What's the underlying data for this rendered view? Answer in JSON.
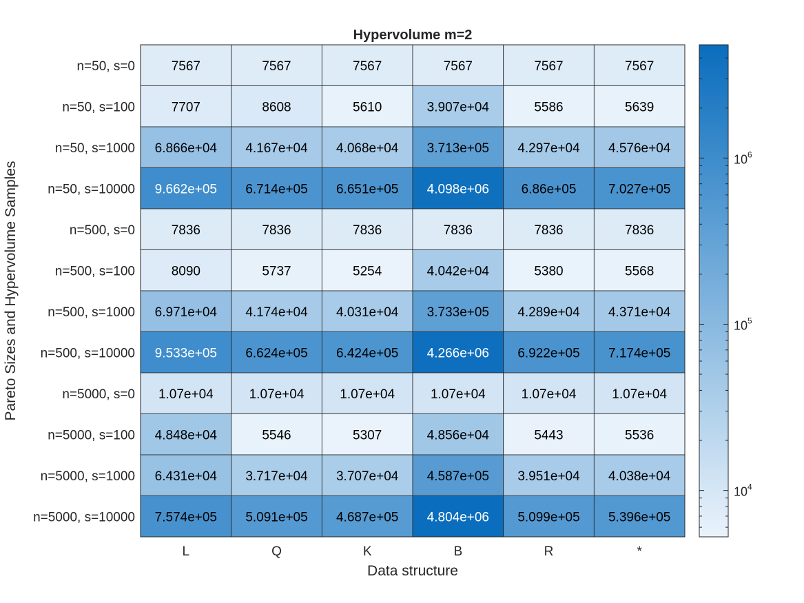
{
  "chart_data": {
    "type": "heatmap",
    "title": "Hypervolume m=2",
    "xlabel": "Data structure",
    "ylabel": "Pareto Sizes and Hypervolume Samples",
    "x_categories": [
      "L",
      "Q",
      "K",
      "B",
      "R",
      "*"
    ],
    "y_categories": [
      "n=50, s=0",
      "n=50, s=100",
      "n=50, s=1000",
      "n=50, s=10000",
      "n=500, s=0",
      "n=500, s=100",
      "n=500, s=1000",
      "n=500, s=10000",
      "n=5000, s=0",
      "n=5000, s=100",
      "n=5000, s=1000",
      "n=5000, s=10000"
    ],
    "values": [
      [
        7567,
        7567,
        7567,
        7567,
        7567,
        7567
      ],
      [
        7707,
        8608,
        5610,
        39070,
        5586,
        5639
      ],
      [
        68660,
        41670,
        40680,
        371300,
        42970,
        45760
      ],
      [
        966200,
        671400,
        665100,
        4098000,
        686000,
        702700
      ],
      [
        7836,
        7836,
        7836,
        7836,
        7836,
        7836
      ],
      [
        8090,
        5737,
        5254,
        40420,
        5380,
        5568
      ],
      [
        69710,
        41740,
        40310,
        373300,
        42890,
        43710
      ],
      [
        953300,
        662400,
        642400,
        4266000,
        692200,
        717400
      ],
      [
        10700,
        10700,
        10700,
        10700,
        10700,
        10700
      ],
      [
        48480,
        5546,
        5307,
        48560,
        5443,
        5536
      ],
      [
        64310,
        37170,
        37070,
        458700,
        39510,
        40380
      ],
      [
        757400,
        509100,
        468700,
        4804000,
        509900,
        539600
      ]
    ],
    "cell_labels": [
      [
        "7567",
        "7567",
        "7567",
        "7567",
        "7567",
        "7567"
      ],
      [
        "7707",
        "8608",
        "5610",
        "3.907e+04",
        "5586",
        "5639"
      ],
      [
        "6.866e+04",
        "4.167e+04",
        "4.068e+04",
        "3.713e+05",
        "4.297e+04",
        "4.576e+04"
      ],
      [
        "9.662e+05",
        "6.714e+05",
        "6.651e+05",
        "4.098e+06",
        "6.86e+05",
        "7.027e+05"
      ],
      [
        "7836",
        "7836",
        "7836",
        "7836",
        "7836",
        "7836"
      ],
      [
        "8090",
        "5737",
        "5254",
        "4.042e+04",
        "5380",
        "5568"
      ],
      [
        "6.971e+04",
        "4.174e+04",
        "4.031e+04",
        "3.733e+05",
        "4.289e+04",
        "4.371e+04"
      ],
      [
        "9.533e+05",
        "6.624e+05",
        "6.424e+05",
        "4.266e+06",
        "6.922e+05",
        "7.174e+05"
      ],
      [
        "1.07e+04",
        "1.07e+04",
        "1.07e+04",
        "1.07e+04",
        "1.07e+04",
        "1.07e+04"
      ],
      [
        "4.848e+04",
        "5546",
        "5307",
        "4.856e+04",
        "5443",
        "5536"
      ],
      [
        "6.431e+04",
        "3.717e+04",
        "3.707e+04",
        "4.587e+05",
        "3.951e+04",
        "4.038e+04"
      ],
      [
        "7.574e+05",
        "5.091e+05",
        "4.687e+05",
        "4.804e+06",
        "5.099e+05",
        "5.396e+05"
      ]
    ],
    "color_scale": "log",
    "color_range": [
      5254,
      4804000
    ],
    "color_low": "#eaf3fb",
    "color_high": "#0a6dbd",
    "colorbar": {
      "placement": "right",
      "ticks": [
        {
          "value": 10000,
          "base": "10",
          "exp": "4"
        },
        {
          "value": 100000,
          "base": "10",
          "exp": "5"
        },
        {
          "value": 1000000,
          "base": "10",
          "exp": "6"
        }
      ]
    },
    "grid": true
  }
}
